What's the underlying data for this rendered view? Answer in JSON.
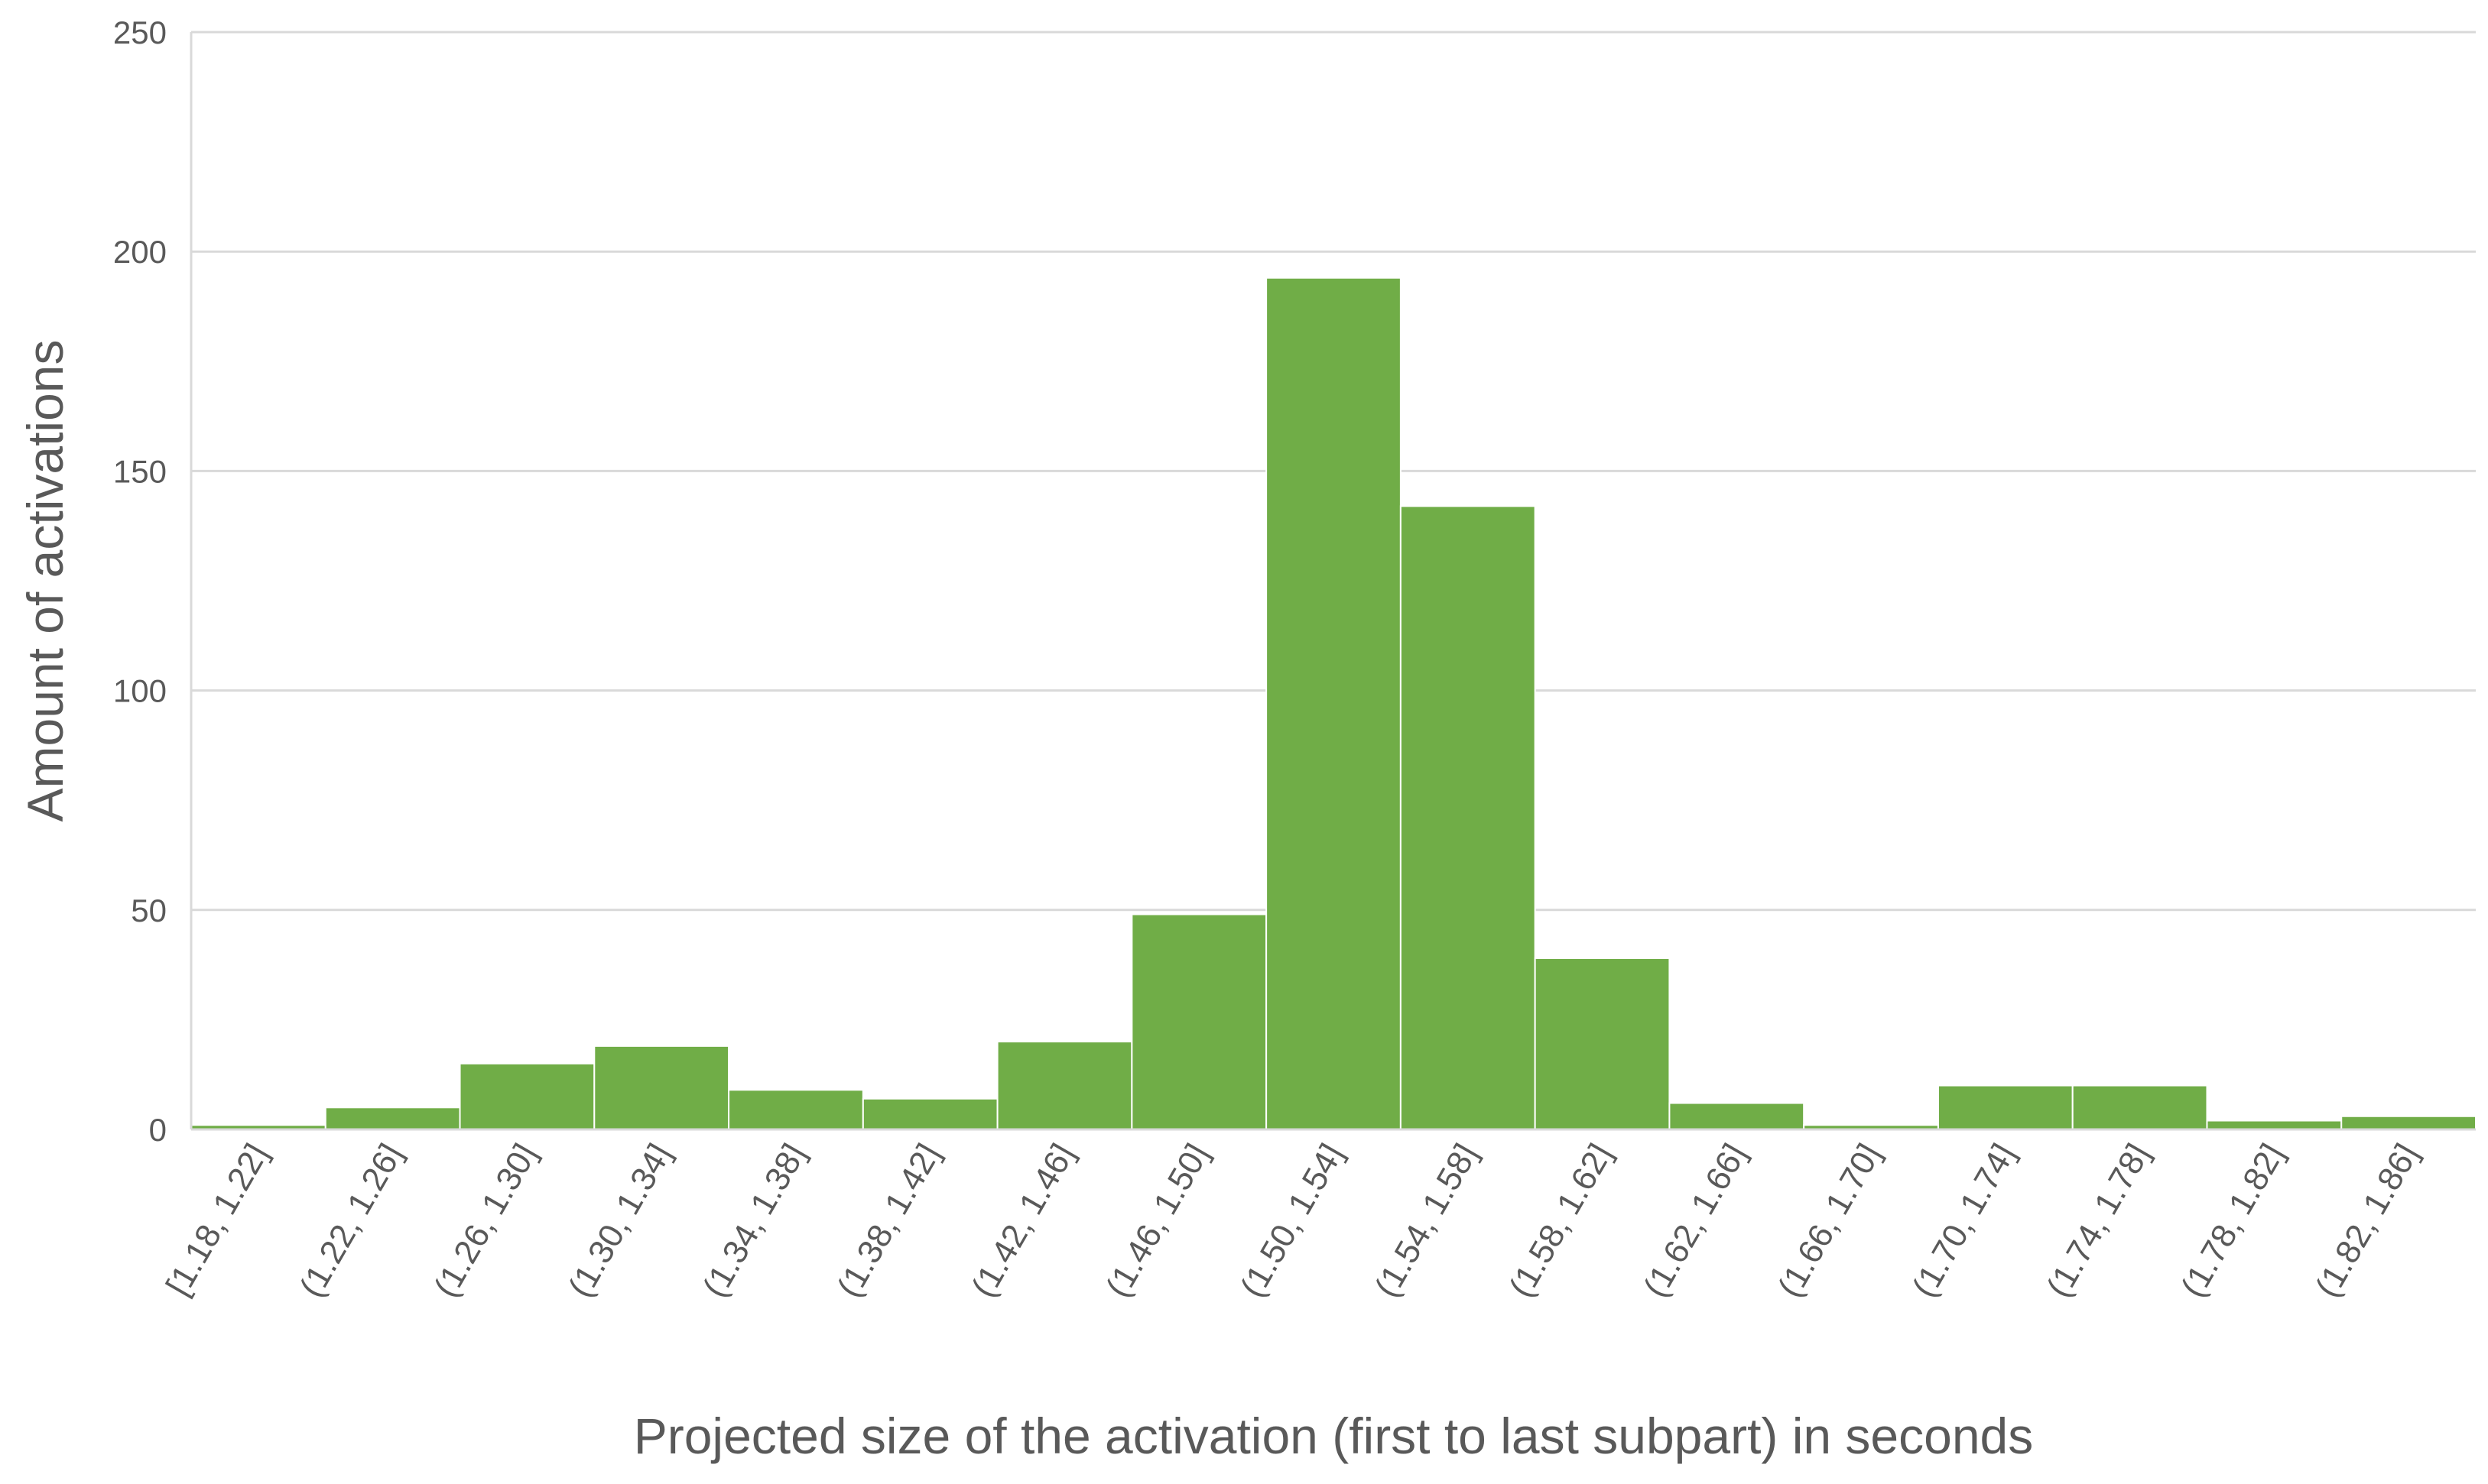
{
  "chart_data": {
    "type": "bar",
    "title": "",
    "xlabel": "Projected size of the activation (first to last subpart) in seconds",
    "ylabel": "Amount of activations",
    "categories": [
      "[1.18, 1.22]",
      "(1.22, 1.26]",
      "(1.26, 1.30]",
      "(1.30, 1.34]",
      "(1.34, 1.38]",
      "(1.38, 1.42]",
      "(1.42, 1.46]",
      "(1.46, 1.50]",
      "(1.50, 1.54]",
      "(1.54, 1.58]",
      "(1.58, 1.62]",
      "(1.62, 1.66]",
      "(1.66, 1.70]",
      "(1.70, 1.74]",
      "(1.74, 1.78]",
      "(1.78, 1.82]",
      "(1.82, 1.86]"
    ],
    "values": [
      1,
      5,
      15,
      19,
      9,
      7,
      20,
      49,
      194,
      142,
      39,
      6,
      1,
      10,
      10,
      2,
      3
    ],
    "ylim": [
      0,
      250
    ],
    "yticks": [
      0,
      50,
      100,
      150,
      200,
      250
    ],
    "grid": true,
    "legend": "none",
    "bar_color": "#70AD47",
    "gridline_color": "#D9D9D9",
    "text_color": "#595959"
  }
}
